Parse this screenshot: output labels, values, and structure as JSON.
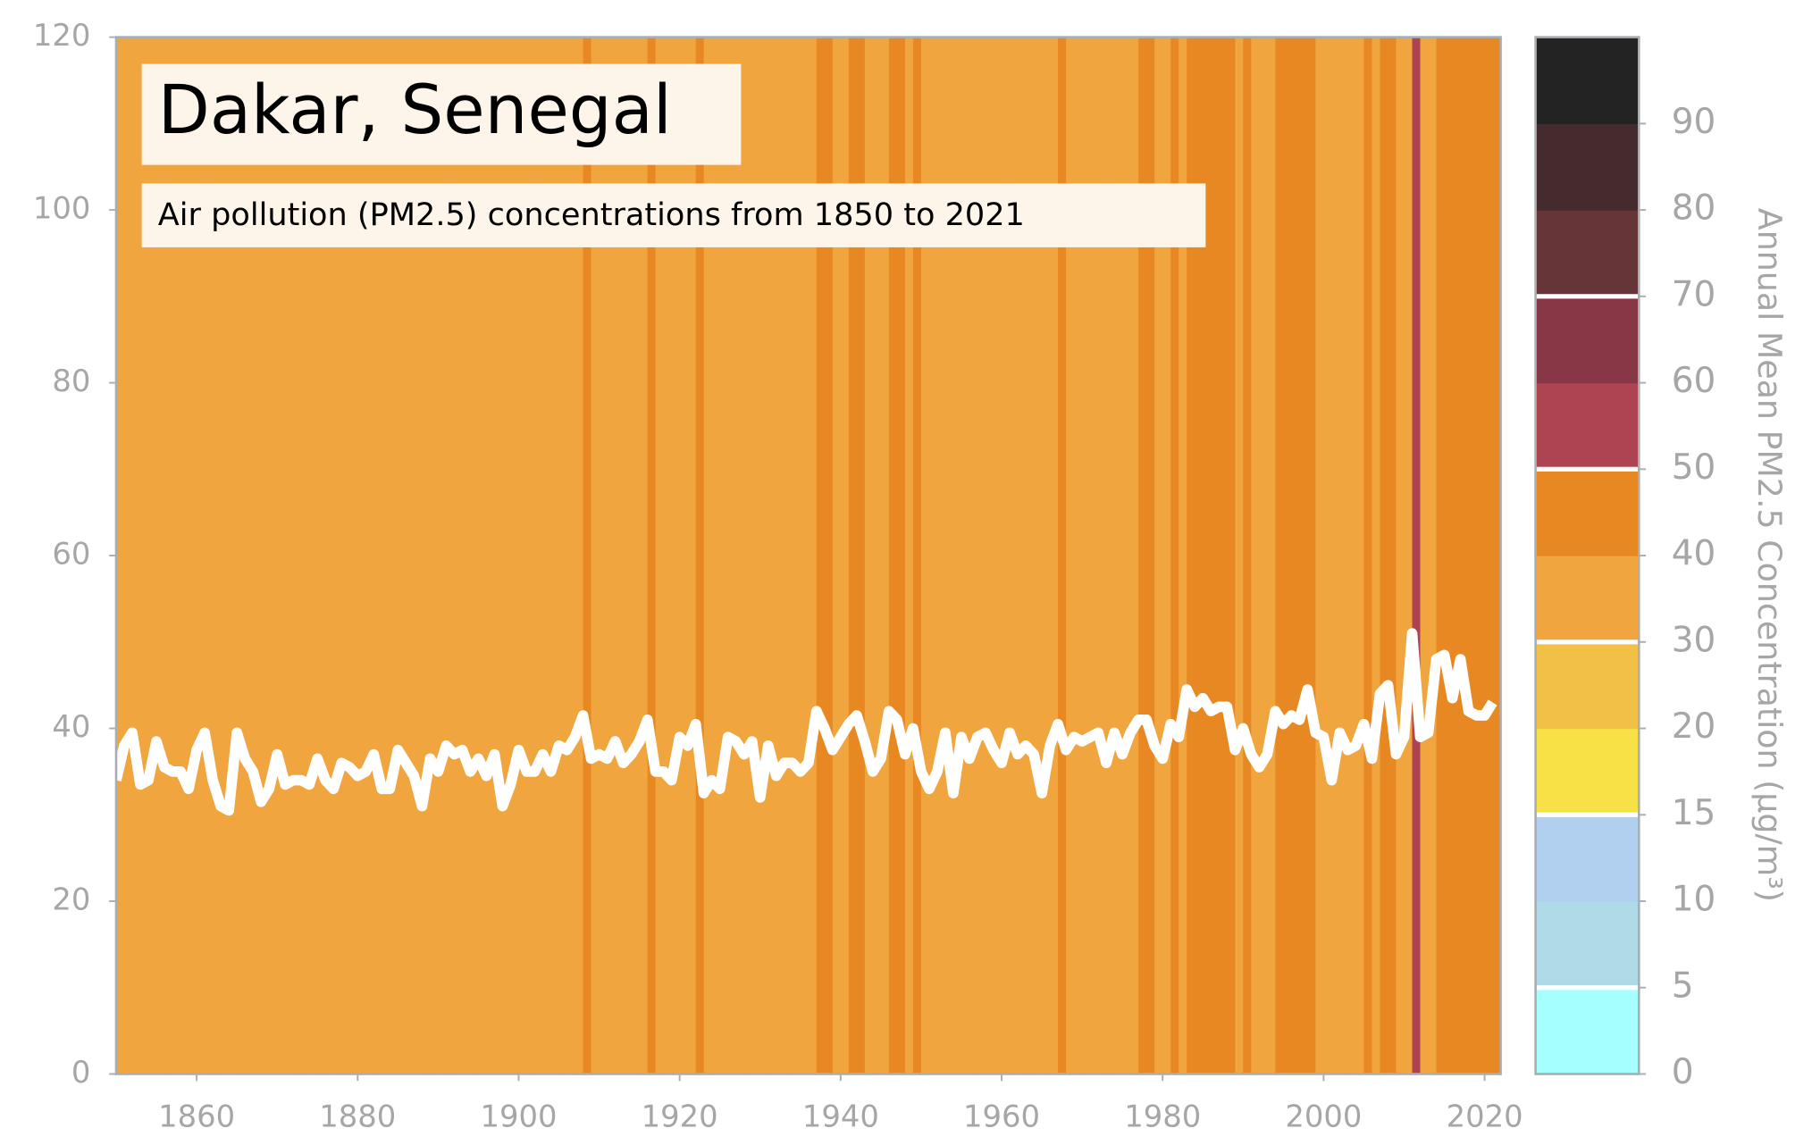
{
  "chart_data": {
    "type": "stripes",
    "title": "Dakar, Senegal",
    "subtitle": "Air pollution (PM2.5) concentrations from 1850 to 2021",
    "x": [
      1850,
      1851,
      1852,
      1853,
      1854,
      1855,
      1856,
      1857,
      1858,
      1859,
      1860,
      1861,
      1862,
      1863,
      1864,
      1865,
      1866,
      1867,
      1868,
      1869,
      1870,
      1871,
      1872,
      1873,
      1874,
      1875,
      1876,
      1877,
      1878,
      1879,
      1880,
      1881,
      1882,
      1883,
      1884,
      1885,
      1886,
      1887,
      1888,
      1889,
      1890,
      1891,
      1892,
      1893,
      1894,
      1895,
      1896,
      1897,
      1898,
      1899,
      1900,
      1901,
      1902,
      1903,
      1904,
      1905,
      1906,
      1907,
      1908,
      1909,
      1910,
      1911,
      1912,
      1913,
      1914,
      1915,
      1916,
      1917,
      1918,
      1919,
      1920,
      1921,
      1922,
      1923,
      1924,
      1925,
      1926,
      1927,
      1928,
      1929,
      1930,
      1931,
      1932,
      1933,
      1934,
      1935,
      1936,
      1937,
      1938,
      1939,
      1940,
      1941,
      1942,
      1943,
      1944,
      1945,
      1946,
      1947,
      1948,
      1949,
      1950,
      1951,
      1952,
      1953,
      1954,
      1955,
      1956,
      1957,
      1958,
      1959,
      1960,
      1961,
      1962,
      1963,
      1964,
      1965,
      1966,
      1967,
      1968,
      1969,
      1970,
      1971,
      1972,
      1973,
      1974,
      1975,
      1976,
      1977,
      1978,
      1979,
      1980,
      1981,
      1982,
      1983,
      1984,
      1985,
      1986,
      1987,
      1988,
      1989,
      1990,
      1991,
      1992,
      1993,
      1994,
      1995,
      1996,
      1997,
      1998,
      1999,
      2000,
      2001,
      2002,
      2003,
      2004,
      2005,
      2006,
      2007,
      2008,
      2009,
      2010,
      2011,
      2012,
      2013,
      2014,
      2015,
      2016,
      2017,
      2018,
      2019,
      2020,
      2021
    ],
    "values": [
      34,
      38,
      39.5,
      33.5,
      34,
      38.5,
      35.5,
      35,
      35,
      33,
      37.5,
      39.5,
      34,
      31,
      30.5,
      39.5,
      36.5,
      35,
      31.5,
      33,
      37,
      33.5,
      34,
      34,
      33.5,
      36.5,
      34,
      33,
      36,
      35.5,
      34.5,
      35,
      37,
      33,
      33,
      37.5,
      36,
      34.5,
      31,
      36.5,
      35,
      38,
      37,
      37.5,
      35,
      36.5,
      34.5,
      37,
      31,
      33.5,
      37.5,
      35,
      35,
      37,
      35,
      38,
      37.5,
      39,
      41.5,
      36.5,
      37,
      36.5,
      38.5,
      36,
      37,
      38.5,
      41,
      35,
      35,
      34,
      39,
      38,
      40.5,
      32.5,
      34,
      33,
      39,
      38.5,
      37,
      38.5,
      32,
      38,
      34.5,
      36,
      36,
      35,
      36,
      42,
      40,
      37.5,
      39,
      40.5,
      41.5,
      38.5,
      35,
      36.5,
      42,
      41,
      37,
      40,
      35,
      33,
      35,
      39.5,
      32.5,
      39,
      36.5,
      39,
      39.5,
      37.5,
      36,
      39.5,
      37,
      38,
      37,
      32.5,
      38,
      40.5,
      37.5,
      39,
      38.5,
      39,
      39.5,
      36,
      39.5,
      37,
      39.5,
      41,
      41,
      38,
      36.5,
      40.5,
      39,
      44.5,
      42.5,
      43.5,
      42,
      42.5,
      42.5,
      37.5,
      40,
      37,
      35.5,
      37,
      42,
      40.5,
      41.5,
      41,
      44.5,
      39.5,
      39,
      34,
      39.5,
      37.5,
      38,
      40.5,
      36.5,
      44,
      45,
      37,
      39,
      51,
      39,
      39.5,
      48,
      48.5,
      43.5,
      48,
      42,
      41.5,
      41.5,
      43
    ],
    "line_color": "#ffffff",
    "xlim": [
      1850,
      2022
    ],
    "xticks": [
      1860,
      1880,
      1900,
      1920,
      1940,
      1960,
      1980,
      2000,
      2020
    ],
    "ylim": [
      0,
      120
    ],
    "yticks": [
      0,
      20,
      40,
      60,
      80,
      100,
      120
    ],
    "colorbar": {
      "label": "Annual Mean PM2.5 Concentration (μg/m³)",
      "boundaries": [
        0,
        5,
        10,
        15,
        20,
        30,
        40,
        50,
        60,
        70,
        80,
        90,
        100
      ],
      "colors": [
        "#a6ffff",
        "#afdbe8",
        "#b1cfee",
        "#f7e146",
        "#f2c046",
        "#f0a53f",
        "#e88822",
        "#ae4451",
        "#873745",
        "#663538",
        "#452b2e",
        "#232323"
      ],
      "ticks": [
        0,
        5,
        10,
        15,
        20,
        30,
        40,
        50,
        60,
        70,
        80,
        90
      ],
      "thresholds": [
        5,
        15,
        30,
        50,
        70
      ]
    }
  }
}
